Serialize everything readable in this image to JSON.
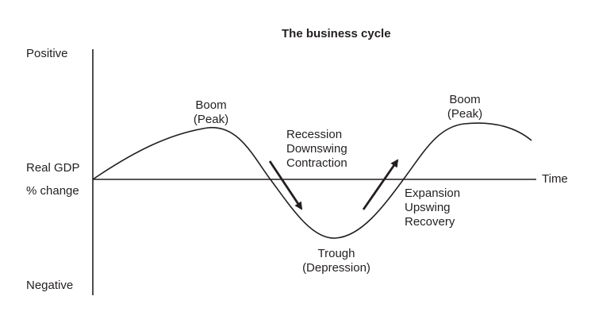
{
  "title": "The business cycle",
  "y_axis": {
    "top_label": "Positive",
    "middle_label_line1": "Real GDP",
    "middle_label_line2": "% change",
    "bottom_label": "Negative"
  },
  "x_axis": {
    "label": "Time"
  },
  "phases": {
    "boom_left": {
      "line1": "Boom",
      "line2": "(Peak)"
    },
    "recession": {
      "line1": "Recession",
      "line2": "Downswing",
      "line3": "Contraction"
    },
    "trough": {
      "line1": "Trough",
      "line2": "(Depression)"
    },
    "expansion": {
      "line1": "Expansion",
      "line2": "Upswing",
      "line3": "Recovery"
    },
    "boom_right": {
      "line1": "Boom",
      "line2": "(Peak)"
    }
  },
  "colors": {
    "ink": "#231f20",
    "background": "#ffffff"
  }
}
